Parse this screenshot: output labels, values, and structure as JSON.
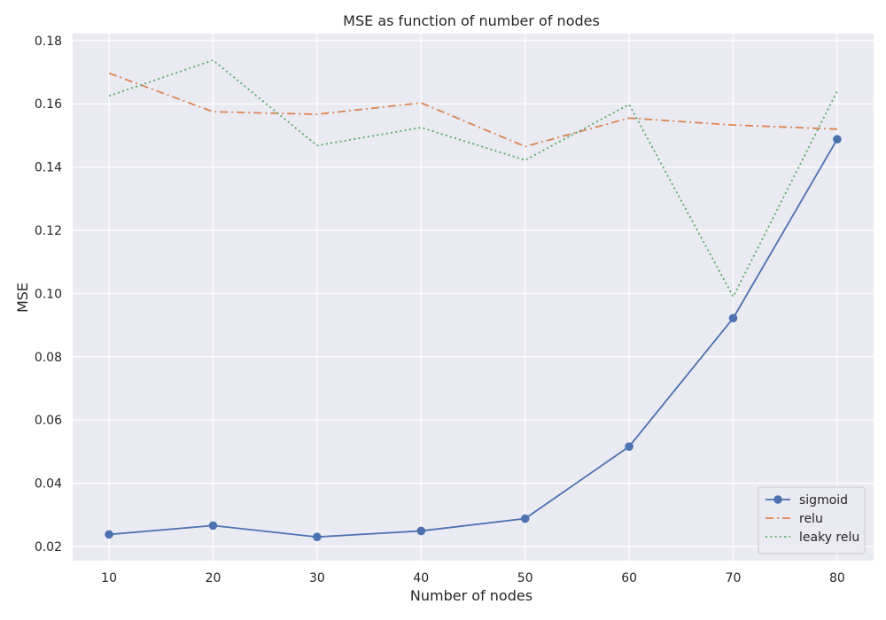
{
  "chart_data": {
    "type": "line",
    "title": "MSE as function of number of nodes",
    "xlabel": "Number of nodes",
    "ylabel": "MSE",
    "x": [
      10,
      20,
      30,
      40,
      50,
      60,
      70,
      80
    ],
    "xlim": [
      6.5,
      83.5
    ],
    "ylim": [
      0.0155,
      0.1822
    ],
    "xticks": [
      10,
      20,
      30,
      40,
      50,
      60,
      70,
      80
    ],
    "yticks": [
      0.02,
      0.04,
      0.06,
      0.08,
      0.1,
      0.12,
      0.14,
      0.16,
      0.18
    ],
    "grid": true,
    "legend_position": "lower-right",
    "series": [
      {
        "name": "sigmoid",
        "color": "#4c72b0",
        "style": "solid",
        "marker": "circle",
        "values": [
          0.0238,
          0.0266,
          0.023,
          0.0249,
          0.0288,
          0.0516,
          0.0922,
          0.1488
        ]
      },
      {
        "name": "relu",
        "color": "#dd8452",
        "style": "dashdot",
        "marker": "none",
        "values": [
          0.1697,
          0.1575,
          0.1567,
          0.1603,
          0.1465,
          0.1555,
          0.1533,
          0.152
        ]
      },
      {
        "name": "leaky relu",
        "color": "#55a868",
        "style": "dotted",
        "marker": "none",
        "values": [
          0.1625,
          0.1738,
          0.1468,
          0.1525,
          0.1422,
          0.1598,
          0.099,
          0.164
        ]
      }
    ]
  },
  "colors": {
    "plot_background": "#eaeaf2",
    "grid": "#ffffff"
  }
}
